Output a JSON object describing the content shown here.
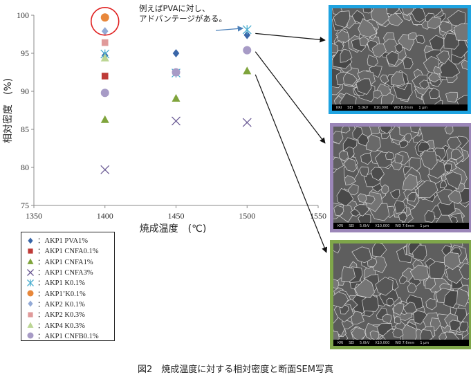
{
  "chart_data": {
    "type": "scatter",
    "xlabel": "焼成温度　(℃)",
    "ylabel": "相対密度　(%)",
    "xlim": [
      1350,
      1550
    ],
    "ylim": [
      75,
      100
    ],
    "xticks": [
      1350,
      1400,
      1450,
      1500,
      1550
    ],
    "yticks": [
      75,
      80,
      85,
      90,
      95,
      100
    ],
    "grid": false,
    "legend_position": "bottom-left",
    "series": [
      {
        "name": "：AKP1 PVA1%",
        "marker": "diamond",
        "color": "#3a66a8",
        "points": [
          [
            1400,
            94.7
          ],
          [
            1450,
            95.0
          ],
          [
            1500,
            97.4
          ]
        ]
      },
      {
        "name": "：AKP1 CNFA0.1%",
        "marker": "square",
        "color": "#be3b37",
        "points": [
          [
            1400,
            92.0
          ]
        ]
      },
      {
        "name": "：AKP1 CNFA1%",
        "marker": "triangle",
        "color": "#7fa43c",
        "points": [
          [
            1400,
            86.3
          ],
          [
            1450,
            89.1
          ],
          [
            1500,
            92.7
          ]
        ]
      },
      {
        "name": "：AKP1 CNFA3%",
        "marker": "x",
        "color": "#6b5b95",
        "points": [
          [
            1400,
            79.7
          ],
          [
            1450,
            86.1
          ],
          [
            1500,
            85.9
          ]
        ]
      },
      {
        "name": "：AKP1 K0.1%",
        "marker": "star",
        "color": "#4aaed0",
        "points": [
          [
            1400,
            94.9
          ],
          [
            1450,
            92.4
          ],
          [
            1500,
            98.1
          ]
        ]
      },
      {
        "name": "：AKP1’K0.1%",
        "marker": "circle",
        "color": "#e8873a",
        "points": [
          [
            1400,
            99.7
          ]
        ]
      },
      {
        "name": "：AKP2 K0.1%",
        "marker": "diamond",
        "color": "#93aad6",
        "points": [
          [
            1400,
            97.9
          ]
        ]
      },
      {
        "name": "：AKP2 K0.3%",
        "marker": "square",
        "color": "#e09a9a",
        "points": [
          [
            1400,
            96.4
          ]
        ]
      },
      {
        "name": "：AKP4 K0.3%",
        "marker": "triangle",
        "color": "#bcd694",
        "points": [
          [
            1400,
            94.4
          ]
        ]
      },
      {
        "name": "：AKP1 CNFB0.1%",
        "marker": "circle",
        "color": "#a79bc6",
        "points": [
          [
            1400,
            89.8
          ],
          [
            1450,
            92.5
          ],
          [
            1500,
            95.4
          ]
        ]
      }
    ],
    "annotations": [
      "例えばPVAに対し、",
      "アドバンテージがある。"
    ]
  },
  "sem_images": [
    {
      "frame_color": "#1fa3e0",
      "bar_labels": [
        "KRI",
        "SEI",
        "5.0kV",
        "X10,000",
        "WD 8.0mm",
        "1 μm"
      ]
    },
    {
      "frame_color": "#9b86b8",
      "bar_labels": [
        "KRI",
        "SEI",
        "5.0kV",
        "X10,000",
        "WD 7.6mm",
        "1 μm"
      ]
    },
    {
      "frame_color": "#7fa64a",
      "bar_labels": [
        "KRI",
        "SEI",
        "5.0kV",
        "X10,000",
        "WD 7.6mm",
        "1 μm"
      ]
    }
  ],
  "caption": "図2　焼成温度に対する相対密度と断面SEM写真"
}
